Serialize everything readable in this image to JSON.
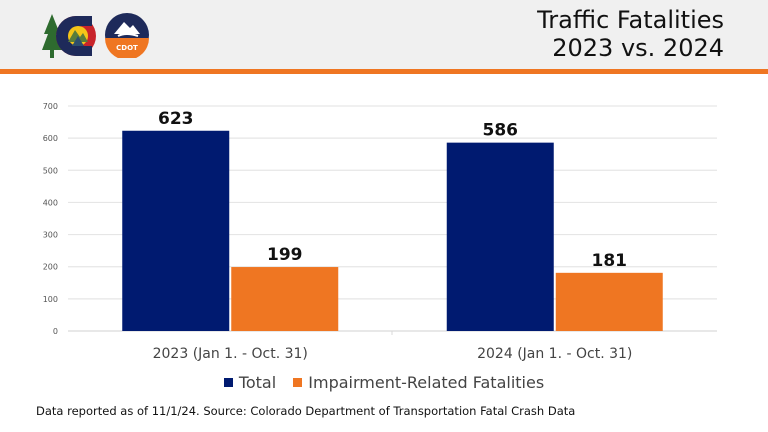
{
  "header": {
    "title_line1": "Traffic Fatalities",
    "title_line2": "2023 vs. 2024",
    "logos": [
      "colorado-state-logo-icon",
      "cdot-logo-icon"
    ],
    "cdot_label": "CDOT",
    "accent_color": "#ef7622"
  },
  "footer": {
    "note": "Data reported as of 11/1/24. Source: Colorado Department of Transportation Fatal Crash Data"
  },
  "chart_data": {
    "type": "bar",
    "title": "Traffic Fatalities 2023 vs. 2024",
    "xlabel": "",
    "ylabel": "",
    "categories": [
      "2023 (Jan 1. - Oct. 31)",
      "2024 (Jan 1. - Oct. 31)"
    ],
    "series": [
      {
        "name": "Total",
        "values": [
          623,
          586
        ],
        "color": "#001a70"
      },
      {
        "name": "Impairment-Related Fatalities",
        "values": [
          199,
          181
        ],
        "color": "#ef7622"
      }
    ],
    "ylim": [
      0,
      700
    ],
    "yticks": [
      0,
      100,
      200,
      300,
      400,
      500,
      600,
      700
    ],
    "grid": true,
    "legend": "bottom-center",
    "data_labels": true
  }
}
